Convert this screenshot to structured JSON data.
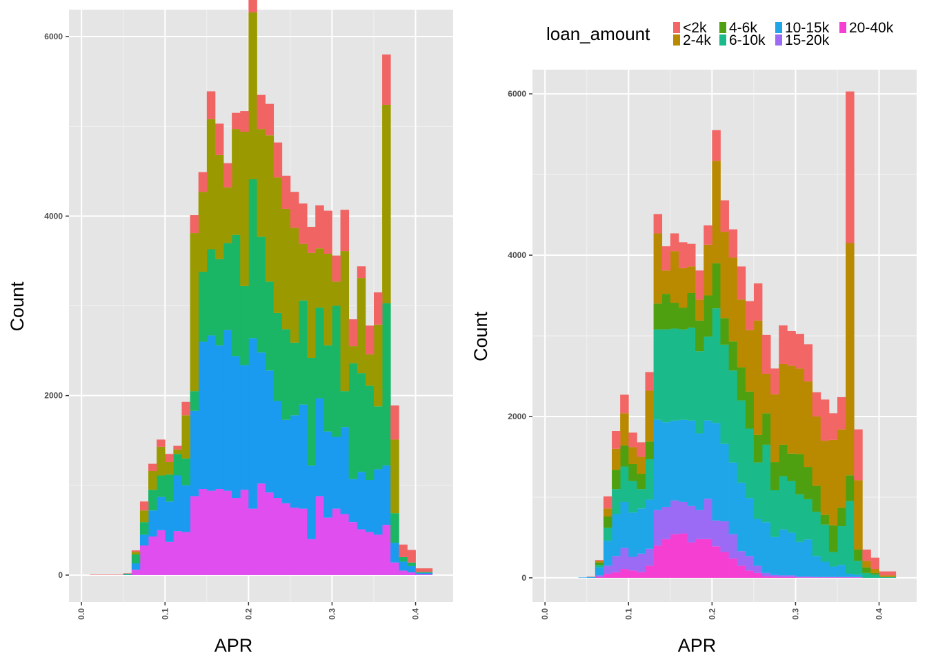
{
  "chart_data": [
    {
      "type": "bar",
      "stacked": true,
      "panel": "left",
      "xlabel": "APR",
      "ylabel": "Count",
      "xlim": [
        -0.015,
        0.445
      ],
      "ylim": [
        -300,
        6300
      ],
      "x_ticks": [
        "0.0",
        "0.1",
        "0.2",
        "0.3",
        "0.4"
      ],
      "y_ticks": [
        "0",
        "2000",
        "4000",
        "6000"
      ],
      "grid": true,
      "bin_width": 0.01,
      "bin_starts": [
        0.0,
        0.01,
        0.02,
        0.03,
        0.04,
        0.05,
        0.06,
        0.07,
        0.08,
        0.09,
        0.1,
        0.11,
        0.12,
        0.13,
        0.14,
        0.15,
        0.16,
        0.17,
        0.18,
        0.19,
        0.2,
        0.21,
        0.22,
        0.23,
        0.24,
        0.25,
        0.26,
        0.27,
        0.28,
        0.29,
        0.3,
        0.31,
        0.32,
        0.33,
        0.34,
        0.35,
        0.36,
        0.37,
        0.38,
        0.39,
        0.4,
        0.41
      ],
      "series": [
        {
          "key": "20-40k",
          "color": "#E04EF0",
          "values": [
            0,
            0,
            0,
            0,
            0,
            0,
            60,
            330,
            430,
            500,
            370,
            490,
            480,
            880,
            960,
            940,
            960,
            940,
            860,
            950,
            740,
            1020,
            920,
            860,
            800,
            750,
            740,
            400,
            880,
            640,
            740,
            680,
            590,
            510,
            480,
            450,
            560,
            140,
            50,
            30,
            10,
            10
          ]
        },
        {
          "key": "10-15k",
          "color": "#1A9BEF",
          "values": [
            0,
            0,
            0,
            0,
            0,
            5,
            70,
            120,
            290,
            370,
            450,
            620,
            520,
            950,
            1640,
            1730,
            1600,
            1790,
            1580,
            1390,
            1900,
            1460,
            1360,
            1080,
            930,
            1030,
            1160,
            820,
            1090,
            960,
            800,
            970,
            480,
            640,
            580,
            730,
            660,
            220,
            100,
            70,
            15,
            15
          ]
        },
        {
          "key": "6-10k",
          "color": "#1BB566",
          "values": [
            0,
            0,
            0,
            0,
            0,
            10,
            100,
            140,
            230,
            240,
            300,
            240,
            300,
            220,
            780,
            960,
            960,
            970,
            1350,
            880,
            1770,
            1290,
            990,
            980,
            1010,
            810,
            1160,
            1200,
            1010,
            960,
            1460,
            400,
            1290,
            1100,
            1050,
            700,
            1810,
            330,
            50,
            40,
            10,
            10
          ]
        },
        {
          "key": "2-4k",
          "color": "#9A9A00",
          "values": [
            0,
            0,
            0,
            0,
            0,
            0,
            30,
            130,
            210,
            320,
            140,
            50,
            480,
            1760,
            890,
            1450,
            1160,
            620,
            1180,
            1720,
            1860,
            1200,
            1630,
            1510,
            1340,
            1280,
            630,
            1170,
            660,
            1020,
            270,
            1560,
            190,
            1060,
            350,
            910,
            2210,
            820,
            0,
            0,
            0,
            0
          ]
        },
        {
          "key": "<2k",
          "color": "#F06464",
          "values": [
            0,
            5,
            5,
            5,
            5,
            5,
            15,
            100,
            80,
            80,
            90,
            40,
            150,
            200,
            220,
            310,
            350,
            270,
            180,
            230,
            290,
            380,
            350,
            390,
            370,
            400,
            450,
            290,
            480,
            480,
            290,
            460,
            300,
            130,
            320,
            360,
            560,
            380,
            140,
            140,
            40,
            40
          ]
        }
      ]
    },
    {
      "type": "bar",
      "stacked": true,
      "panel": "right",
      "xlabel": "APR",
      "ylabel": "Count",
      "xlim": [
        -0.015,
        0.445
      ],
      "ylim": [
        -300,
        6300
      ],
      "x_ticks": [
        "0.0",
        "0.1",
        "0.2",
        "0.3",
        "0.4"
      ],
      "y_ticks": [
        "0",
        "2000",
        "4000",
        "6000"
      ],
      "grid": true,
      "legend_title": "loan_amount",
      "legend_position": "top",
      "bin_width": 0.01,
      "bin_starts": [
        0.0,
        0.01,
        0.02,
        0.03,
        0.04,
        0.05,
        0.06,
        0.07,
        0.08,
        0.09,
        0.1,
        0.11,
        0.12,
        0.13,
        0.14,
        0.15,
        0.16,
        0.17,
        0.18,
        0.19,
        0.2,
        0.21,
        0.22,
        0.23,
        0.24,
        0.25,
        0.26,
        0.27,
        0.28,
        0.29,
        0.3,
        0.31,
        0.32,
        0.33,
        0.34,
        0.35,
        0.36,
        0.37,
        0.38,
        0.39,
        0.4,
        0.41
      ],
      "series": [
        {
          "key": "20-40k",
          "color": "#F53FD2",
          "values": [
            0,
            0,
            0,
            0,
            0,
            0,
            10,
            50,
            70,
            110,
            90,
            70,
            150,
            400,
            480,
            540,
            550,
            440,
            480,
            480,
            390,
            320,
            240,
            150,
            90,
            60,
            20,
            15,
            10,
            10,
            5,
            5,
            5,
            5,
            5,
            5,
            5,
            5,
            0,
            0,
            0,
            0
          ]
        },
        {
          "key": "15-20k",
          "color": "#9C6BF5",
          "values": [
            0,
            0,
            0,
            0,
            0,
            0,
            20,
            100,
            200,
            260,
            170,
            230,
            210,
            440,
            400,
            420,
            390,
            450,
            360,
            500,
            320,
            380,
            300,
            180,
            180,
            90,
            40,
            20,
            20,
            20,
            10,
            10,
            5,
            5,
            5,
            5,
            5,
            5,
            0,
            0,
            0,
            0
          ]
        },
        {
          "key": "10-15k",
          "color": "#1FA6E9",
          "values": [
            0,
            0,
            0,
            0,
            5,
            10,
            100,
            310,
            520,
            570,
            550,
            560,
            610,
            1120,
            1050,
            990,
            1020,
            1060,
            950,
            970,
            1210,
            960,
            890,
            850,
            720,
            580,
            630,
            470,
            570,
            530,
            430,
            460,
            260,
            190,
            130,
            150,
            40,
            30,
            0,
            0,
            0,
            0
          ]
        },
        {
          "key": "6-10k",
          "color": "#1ABA8A",
          "values": [
            0,
            0,
            0,
            0,
            0,
            0,
            30,
            160,
            310,
            440,
            390,
            240,
            500,
            1120,
            1150,
            1140,
            1120,
            1150,
            1020,
            1040,
            1420,
            1230,
            1140,
            1020,
            860,
            700,
            960,
            580,
            660,
            640,
            590,
            500,
            550,
            460,
            180,
            480,
            900,
            170,
            60,
            40,
            10,
            10
          ]
        },
        {
          "key": "4-6k",
          "color": "#4EA010",
          "values": [
            0,
            0,
            0,
            0,
            0,
            0,
            30,
            140,
            240,
            260,
            210,
            190,
            220,
            320,
            440,
            320,
            270,
            430,
            380,
            510,
            560,
            330,
            360,
            410,
            460,
            340,
            390,
            350,
            390,
            340,
            500,
            400,
            320,
            120,
            330,
            230,
            320,
            140,
            70,
            20,
            0,
            0
          ]
        },
        {
          "key": "2-4k",
          "color": "#B98A00",
          "values": [
            0,
            0,
            0,
            0,
            0,
            0,
            20,
            100,
            260,
            400,
            210,
            210,
            630,
            870,
            290,
            640,
            490,
            330,
            260,
            630,
            1270,
            1070,
            1040,
            840,
            760,
            1420,
            490,
            840,
            1000,
            1090,
            1060,
            1060,
            860,
            920,
            1060,
            970,
            2880,
            860,
            80,
            50,
            20,
            20
          ]
        },
        {
          "key": "<2k",
          "color": "#F26666",
          "values": [
            0,
            0,
            0,
            0,
            0,
            5,
            10,
            150,
            220,
            230,
            180,
            180,
            230,
            240,
            300,
            220,
            320,
            280,
            360,
            240,
            380,
            390,
            350,
            410,
            360,
            460,
            480,
            320,
            480,
            430,
            430,
            460,
            300,
            510,
            330,
            400,
            1880,
            630,
            140,
            140,
            50,
            50
          ]
        }
      ]
    }
  ],
  "legend": {
    "title": "loan_amount",
    "items": [
      {
        "label": "<2k",
        "color": "#F26666"
      },
      {
        "label": "2-4k",
        "color": "#B98A00"
      },
      {
        "label": "4-6k",
        "color": "#4EA010"
      },
      {
        "label": "6-10k",
        "color": "#1ABA8A"
      },
      {
        "label": "10-15k",
        "color": "#1FA6E9"
      },
      {
        "label": "15-20k",
        "color": "#9C6BF5"
      },
      {
        "label": "20-40k",
        "color": "#F53FD2"
      }
    ]
  }
}
